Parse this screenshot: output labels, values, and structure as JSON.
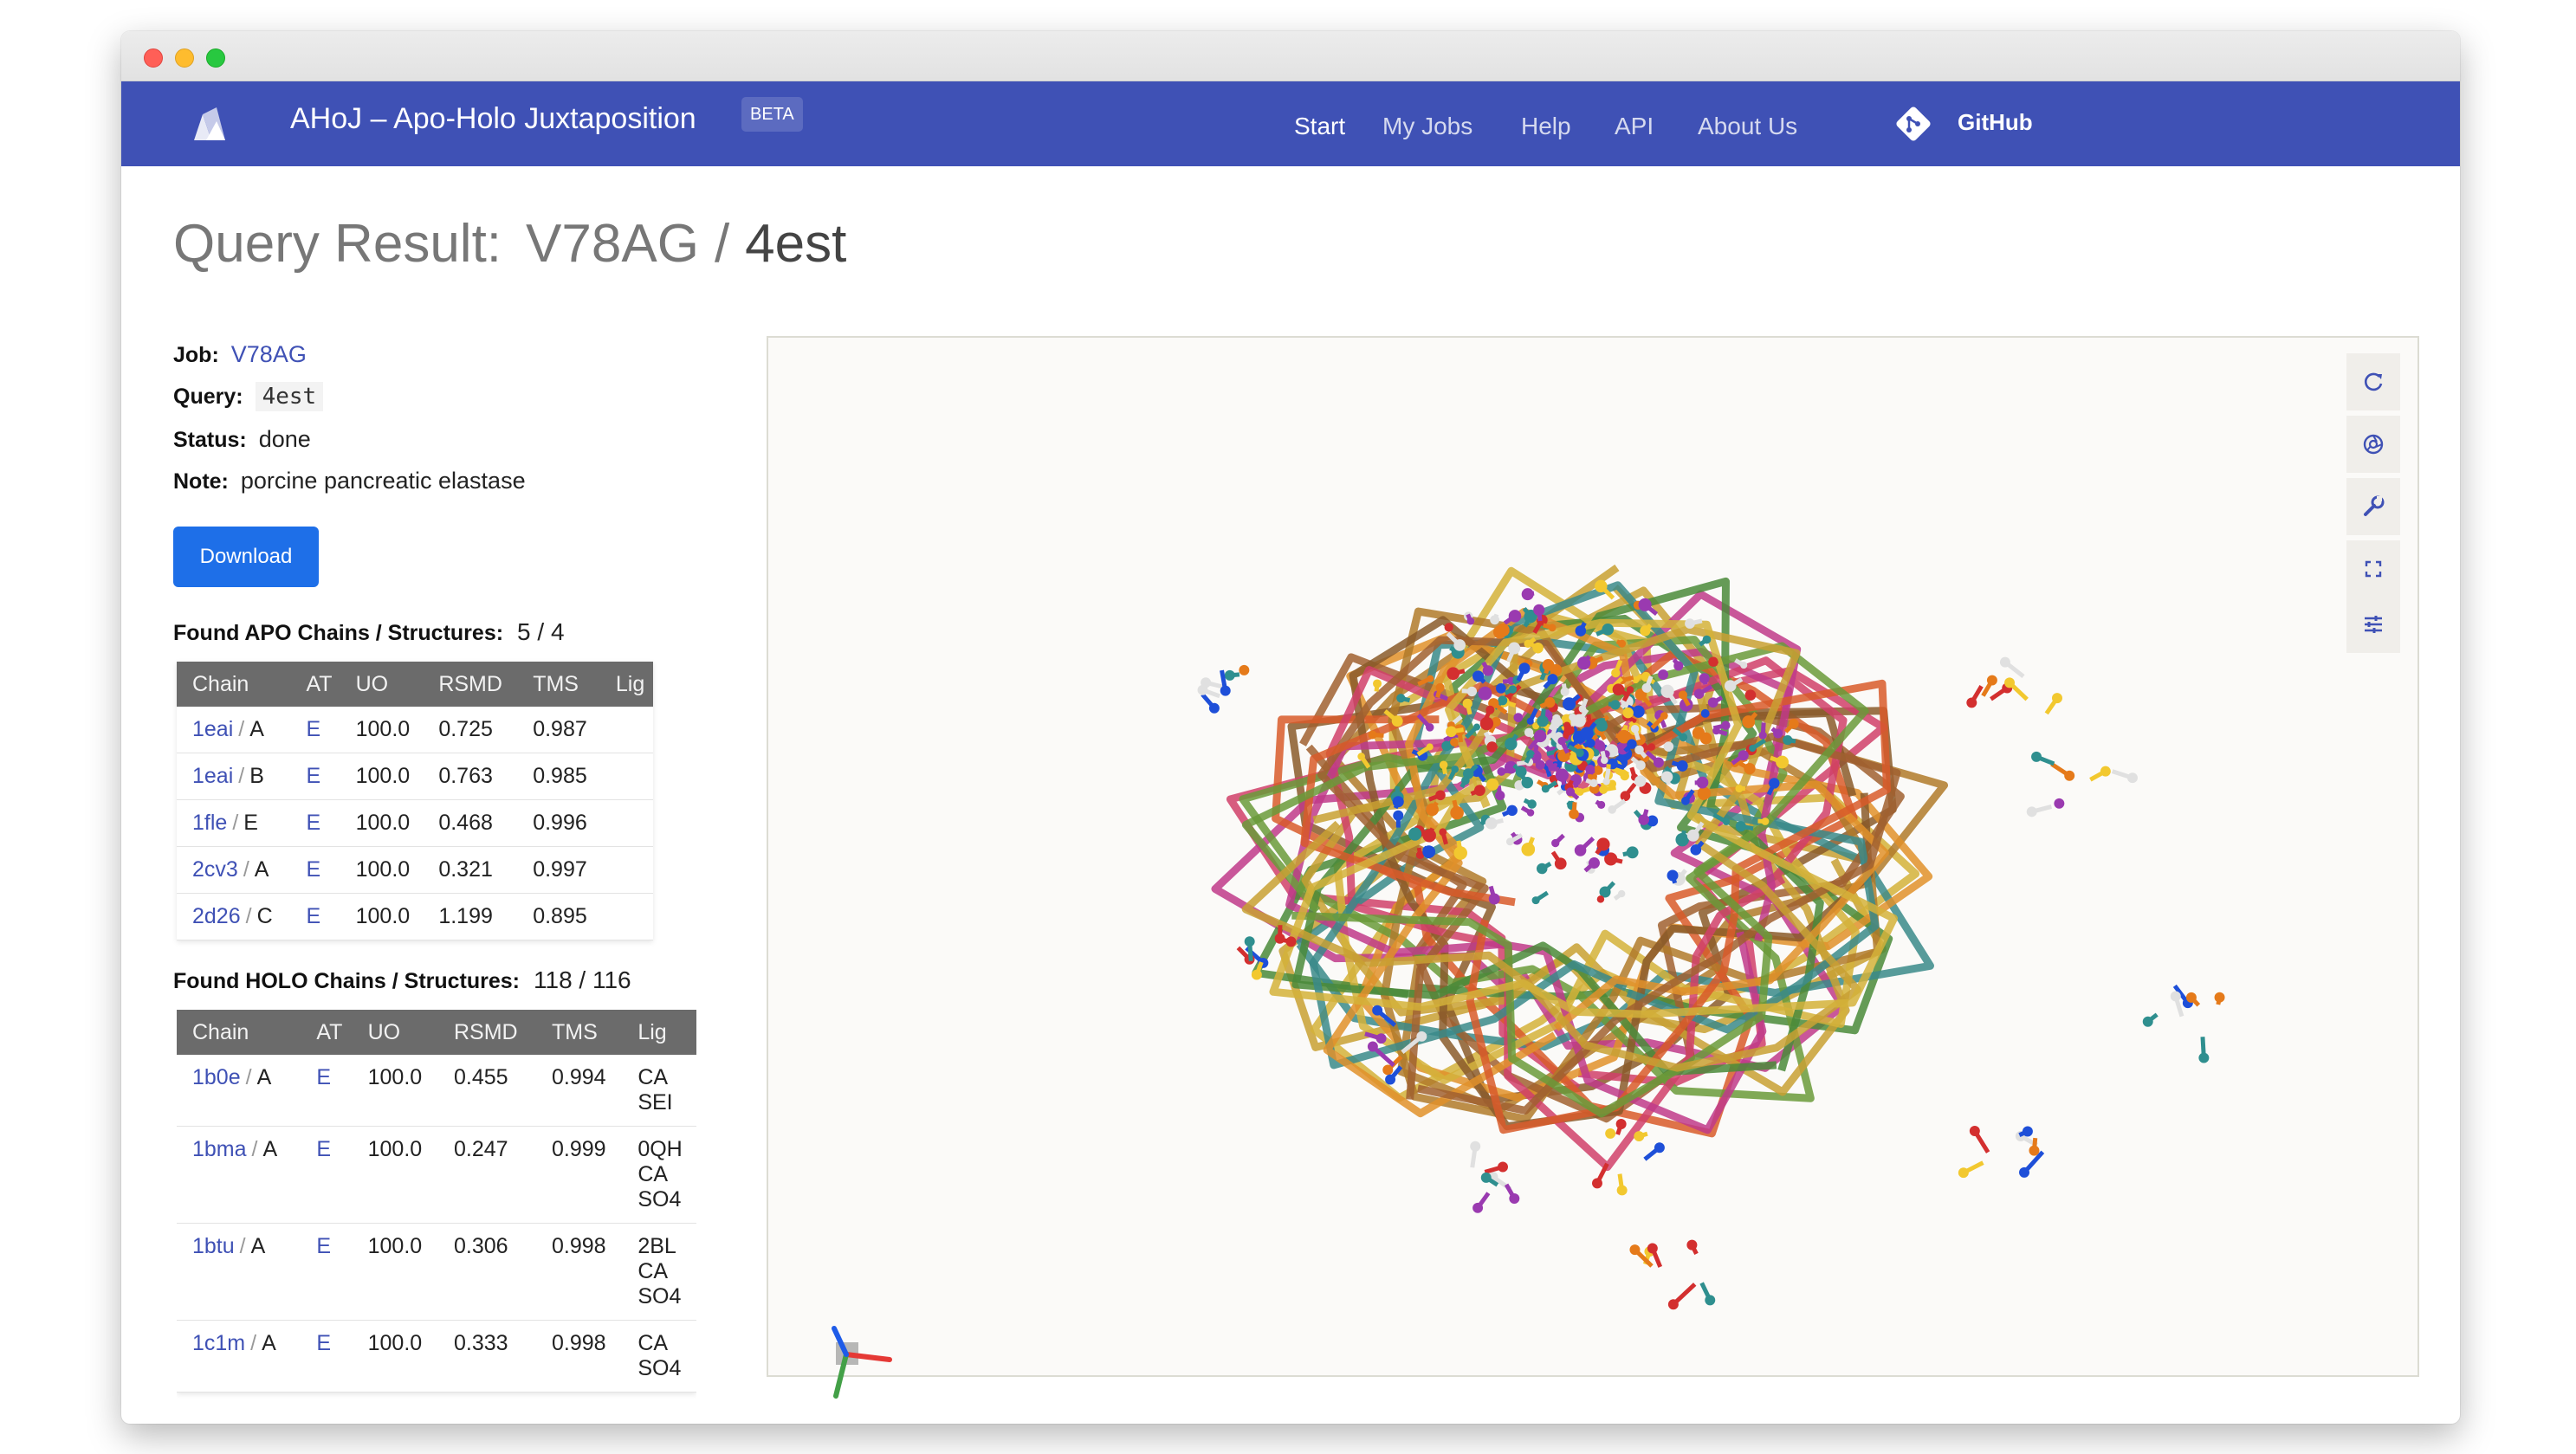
{
  "app": {
    "brand": "AHoJ – Apo-Holo Juxtaposition",
    "badge": "BETA"
  },
  "nav": {
    "items": [
      "Start",
      "My Jobs",
      "Help",
      "API",
      "About Us"
    ],
    "github": "GitHub"
  },
  "title": {
    "prefix": "Query Result:",
    "job": "V78AG",
    "separator": "/",
    "query": "4est"
  },
  "info": {
    "job_label": "Job:",
    "job_value": "V78AG",
    "query_label": "Query:",
    "query_value": "4est",
    "status_label": "Status:",
    "status_value": "done",
    "note_label": "Note:",
    "note_value": "porcine pancreatic elastase"
  },
  "download_label": "Download",
  "apo": {
    "heading": "Found APO Chains / Structures:",
    "count": "5 / 4",
    "columns": [
      "Chain",
      "AT",
      "UO",
      "RSMD",
      "TMS",
      "Lig"
    ],
    "rows": [
      {
        "pdb": "1eai",
        "chain": "A",
        "at": "E",
        "uo": "100.0",
        "rmsd": "0.725",
        "tms": "0.987",
        "lig": []
      },
      {
        "pdb": "1eai",
        "chain": "B",
        "at": "E",
        "uo": "100.0",
        "rmsd": "0.763",
        "tms": "0.985",
        "lig": []
      },
      {
        "pdb": "1fle",
        "chain": "E",
        "at": "E",
        "uo": "100.0",
        "rmsd": "0.468",
        "tms": "0.996",
        "lig": []
      },
      {
        "pdb": "2cv3",
        "chain": "A",
        "at": "E",
        "uo": "100.0",
        "rmsd": "0.321",
        "tms": "0.997",
        "lig": []
      },
      {
        "pdb": "2d26",
        "chain": "C",
        "at": "E",
        "uo": "100.0",
        "rmsd": "1.199",
        "tms": "0.895",
        "lig": []
      }
    ]
  },
  "holo": {
    "heading": "Found HOLO Chains / Structures:",
    "count": "118 / 116",
    "columns": [
      "Chain",
      "AT",
      "UO",
      "RSMD",
      "TMS",
      "Lig"
    ],
    "rows": [
      {
        "pdb": "1b0e",
        "chain": "A",
        "at": "E",
        "uo": "100.0",
        "rmsd": "0.455",
        "tms": "0.994",
        "lig": [
          "CA",
          "SEI"
        ]
      },
      {
        "pdb": "1bma",
        "chain": "A",
        "at": "E",
        "uo": "100.0",
        "rmsd": "0.247",
        "tms": "0.999",
        "lig": [
          "0QH",
          "CA",
          "SO4"
        ]
      },
      {
        "pdb": "1btu",
        "chain": "A",
        "at": "E",
        "uo": "100.0",
        "rmsd": "0.306",
        "tms": "0.998",
        "lig": [
          "2BL",
          "CA",
          "SO4"
        ]
      },
      {
        "pdb": "1c1m",
        "chain": "A",
        "at": "E",
        "uo": "100.0",
        "rmsd": "0.333",
        "tms": "0.998",
        "lig": [
          "CA",
          "SO4"
        ]
      }
    ]
  },
  "viewer": {
    "tools": [
      "reset-icon",
      "screenshot-icon",
      "settings-wrench-icon",
      "fullscreen-icon",
      "controls-icon"
    ]
  },
  "colors": {
    "navbar": "#3f51b5",
    "accent": "#1e6fe8",
    "table_header": "#6b6b6b"
  }
}
